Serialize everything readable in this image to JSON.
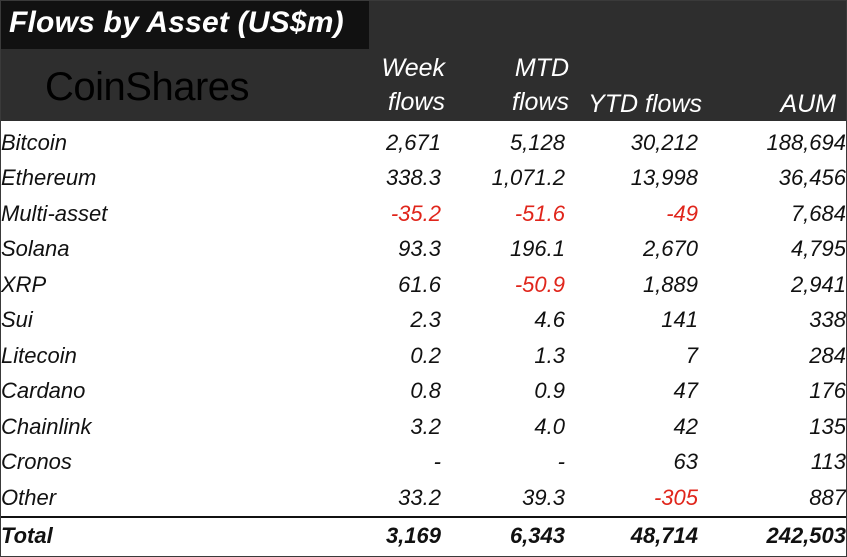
{
  "title": "Flows by Asset (US$m)",
  "logo": "CoinShares",
  "columns": {
    "week": [
      "Week",
      "flows"
    ],
    "mtd": [
      "MTD",
      "flows"
    ],
    "ytd": "YTD flows",
    "aum": "AUM"
  },
  "colors": {
    "header_bg": "#2e2e2e",
    "title_bg": "#111111",
    "negative": "#e0251b"
  },
  "rows": [
    {
      "name": "Bitcoin",
      "week": "2,671",
      "mtd": "5,128",
      "ytd": "30,212",
      "aum": "188,694"
    },
    {
      "name": "Ethereum",
      "week": "338.3",
      "mtd": "1,071.2",
      "ytd": "13,998",
      "aum": "36,456"
    },
    {
      "name": "Multi-asset",
      "week": "-35.2",
      "mtd": "-51.6",
      "ytd": "-49",
      "aum": "7,684"
    },
    {
      "name": "Solana",
      "week": "93.3",
      "mtd": "196.1",
      "ytd": "2,670",
      "aum": "4,795"
    },
    {
      "name": "XRP",
      "week": "61.6",
      "mtd": "-50.9",
      "ytd": "1,889",
      "aum": "2,941"
    },
    {
      "name": "Sui",
      "week": "2.3",
      "mtd": "4.6",
      "ytd": "141",
      "aum": "338"
    },
    {
      "name": "Litecoin",
      "week": "0.2",
      "mtd": "1.3",
      "ytd": "7",
      "aum": "284"
    },
    {
      "name": "Cardano",
      "week": "0.8",
      "mtd": "0.9",
      "ytd": "47",
      "aum": "176"
    },
    {
      "name": "Chainlink",
      "week": "3.2",
      "mtd": "4.0",
      "ytd": "42",
      "aum": "135"
    },
    {
      "name": "Cronos",
      "week": "-",
      "mtd": "-",
      "ytd": "63",
      "aum": "113"
    },
    {
      "name": "Other",
      "week": "33.2",
      "mtd": "39.3",
      "ytd": "-305",
      "aum": "887"
    }
  ],
  "total": {
    "name": "Total",
    "week": "3,169",
    "mtd": "6,343",
    "ytd": "48,714",
    "aum": "242,503"
  }
}
